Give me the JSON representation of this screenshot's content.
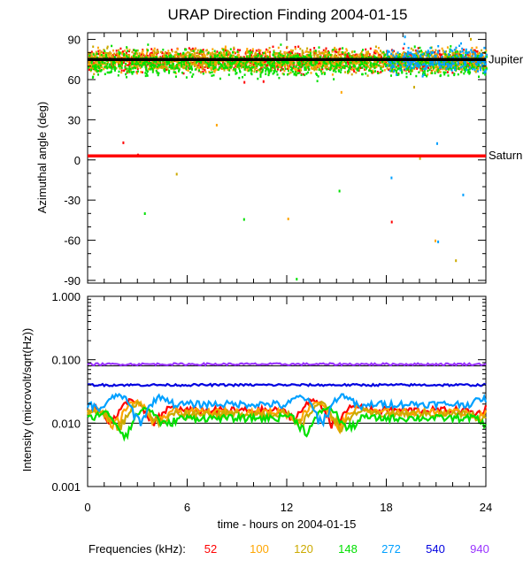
{
  "title": "URAP Direction Finding  2004-01-15",
  "x_axis": {
    "label": "time - hours on 2004-01-15",
    "ticks": [
      "0",
      "6",
      "12",
      "18",
      "24"
    ],
    "range": [
      0,
      24
    ]
  },
  "chart_data": [
    {
      "type": "scatter",
      "name": "azimuth",
      "ylabel": "Azimuthal angle (deg)",
      "ylim": [
        -92,
        95
      ],
      "yticks": [
        "90",
        "60",
        "30",
        "0",
        "-30",
        "-60",
        "-90"
      ],
      "reference_lines": [
        {
          "label": "Jupiter",
          "value": 75,
          "color": "#000000"
        },
        {
          "label": "Saturn",
          "value": 3,
          "color": "#ff0000"
        }
      ],
      "series": [
        {
          "name": "52",
          "clusters": [
            {
              "x": [
                0,
                24
              ],
              "y": 75,
              "spread": 10
            }
          ],
          "color": "#ff0000"
        },
        {
          "name": "100",
          "clusters": [
            {
              "x": [
                0,
                24
              ],
              "y": 75,
              "spread": 10
            }
          ],
          "color": "#ffa500"
        },
        {
          "name": "120",
          "clusters": [
            {
              "x": [
                0,
                24
              ],
              "y": 75,
              "spread": 10
            }
          ],
          "color": "#ccaa00"
        },
        {
          "name": "148",
          "clusters": [
            {
              "x": [
                0,
                24
              ],
              "y": 73,
              "spread": 12
            }
          ],
          "color": "#00e000"
        },
        {
          "name": "272",
          "clusters": [
            {
              "x": [
                18,
                24
              ],
              "y": 75,
              "spread": 12
            }
          ],
          "color": "#00a0ff"
        }
      ]
    },
    {
      "type": "line",
      "name": "intensity",
      "ylabel": "Intensity (microvolt/sqrt(Hz))",
      "yscale": "log",
      "ylim": [
        0.001,
        1
      ],
      "yticks": [
        "1.000",
        "0.100",
        "0.010",
        "0.001"
      ],
      "reference_lines": [
        0.08,
        0.01
      ],
      "series": [
        {
          "name": "940",
          "level": 0.085,
          "color": "#9933ff"
        },
        {
          "name": "540",
          "level": 0.04,
          "color": "#0000e0"
        },
        {
          "name": "272",
          "level": 0.02,
          "color": "#00a0ff"
        },
        {
          "name": "148",
          "level": 0.012,
          "color": "#00e000"
        },
        {
          "name": "120",
          "level": 0.014,
          "color": "#ccaa00"
        },
        {
          "name": "100",
          "level": 0.015,
          "color": "#ffa500"
        },
        {
          "name": "52",
          "level": 0.016,
          "color": "#ff0000"
        }
      ]
    }
  ],
  "legend": {
    "label": "Frequencies (kHz):",
    "items": [
      {
        "value": "52",
        "color": "#ff0000"
      },
      {
        "value": "100",
        "color": "#ffa500"
      },
      {
        "value": "120",
        "color": "#ccaa00"
      },
      {
        "value": "148",
        "color": "#00e000"
      },
      {
        "value": "272",
        "color": "#00a0ff"
      },
      {
        "value": "540",
        "color": "#0000e0"
      },
      {
        "value": "940",
        "color": "#9933ff"
      }
    ]
  }
}
